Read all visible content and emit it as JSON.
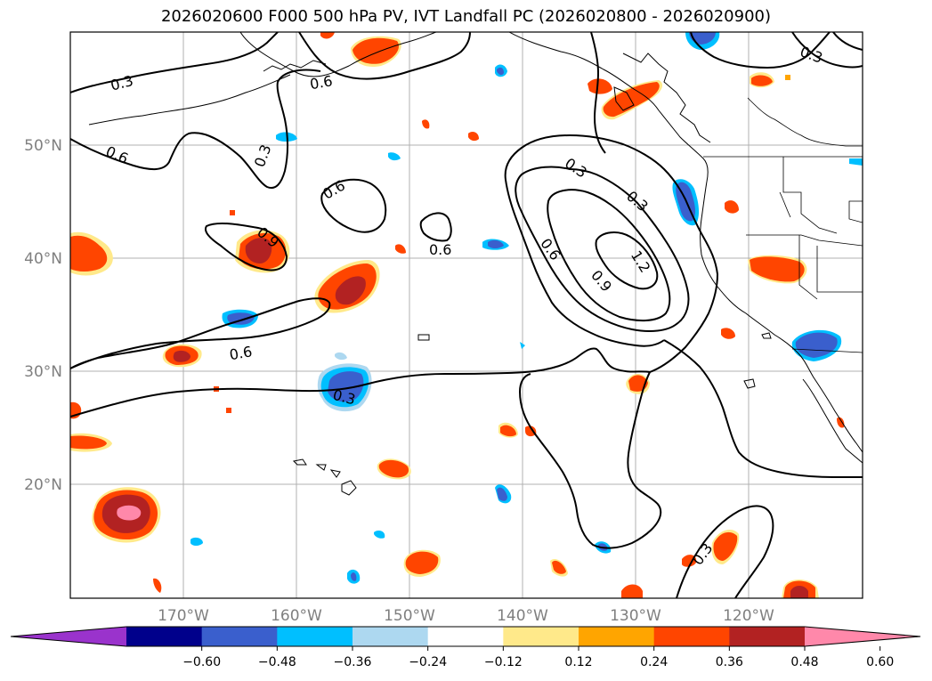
{
  "title": "2026020600 F000 500 hPa PV, IVT Landfall PC (2026020800 - 2026020900)",
  "axes": {
    "lat_labels": [
      "50°N",
      "40°N",
      "30°N",
      "20°N"
    ],
    "lon_labels": [
      "170°W",
      "160°W",
      "150°W",
      "140°W",
      "130°W",
      "120°W"
    ]
  },
  "contour_labels": [
    "0.3",
    "0.6",
    "0.6",
    "0.3",
    "0.6",
    "0.9",
    "0.6",
    "0.6",
    "0.3",
    "0.3",
    "0.9",
    "1.2",
    "0.6",
    "0.3",
    "0.3",
    "0.3"
  ],
  "colorbar": {
    "ticks": [
      "−0.60",
      "−0.48",
      "−0.36",
      "−0.24",
      "−0.12",
      "0.12",
      "0.24",
      "0.36",
      "0.48",
      "0.60"
    ],
    "colors": [
      "#9a33cc",
      "#00008b",
      "#3a5fcd",
      "#00bfff",
      "#add8f0",
      "#ffffff",
      "#ffe98a",
      "#ffa500",
      "#ff4500",
      "#b22222",
      "#ff88aa"
    ]
  }
}
